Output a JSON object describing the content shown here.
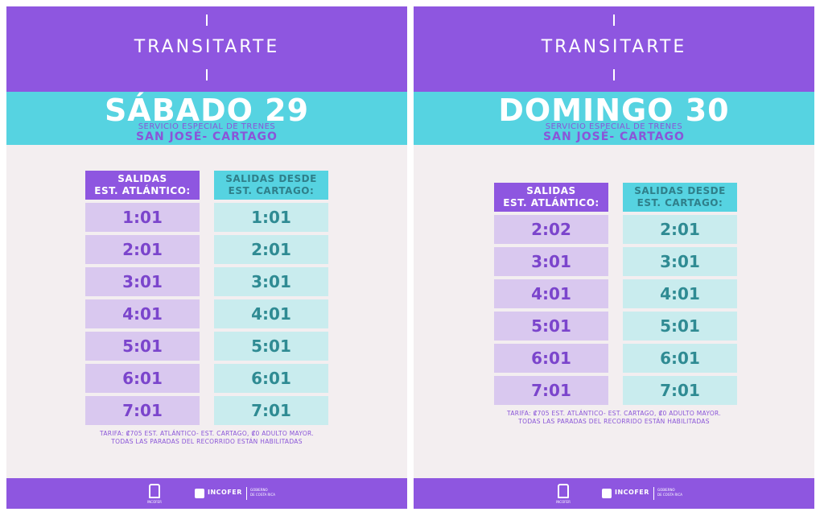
{
  "posters": [
    {
      "brand": "TRANSITARTE",
      "day": "SÁBADO 29",
      "service": "SERVICIO ESPECIAL DE TRENES",
      "route": "SAN JOSÉ- CARTAGO",
      "col1_header": [
        "SALIDAS",
        "EST. ATLÁNTICO:"
      ],
      "col2_header": [
        "SALIDAS DESDE",
        "EST. CARTAGO:"
      ],
      "col1_times": [
        "1:01",
        "2:01",
        "3:01",
        "4:01",
        "5:01",
        "6:01",
        "7:01"
      ],
      "col2_times": [
        "1:01",
        "2:01",
        "3:01",
        "4:01",
        "5:01",
        "6:01",
        "7:01"
      ],
      "note_line1": "TARIFA: ₡705 EST. ATLÁNTICO- EST. CARTAGO, ₡0 ADULTO MAYOR.",
      "note_line2": "TODAS LAS PARADAS DEL RECORRIDO ESTÁN HABILITADAS",
      "footer": {
        "seal_icon": "coat-of-arms-icon",
        "seal_label": "INCOFER",
        "logo_text": "INCOFER",
        "gov_line1": "GOBIERNO",
        "gov_line2": "DE COSTA RICA"
      }
    },
    {
      "brand": "TRANSITARTE",
      "day": "DOMINGO 30",
      "service": "SERVICIO ESPECIAL DE TRENES",
      "route": "SAN JOSÉ- CARTAGO",
      "col1_header": [
        "SALIDAS",
        "EST. ATLÁNTICO:"
      ],
      "col2_header": [
        "SALIDAS DESDE",
        "EST. CARTAGO:"
      ],
      "col1_times": [
        "2:02",
        "3:01",
        "4:01",
        "5:01",
        "6:01",
        "7:01"
      ],
      "col2_times": [
        "2:01",
        "3:01",
        "4:01",
        "5:01",
        "6:01",
        "7:01"
      ],
      "note_line1": "TARIFA: ₡705 EST. ATLÁNTICO- EST. CARTAGO, ₡0 ADULTO MAYOR.",
      "note_line2": "TODAS LAS PARADAS DEL RECORRIDO ESTÁN HABILITADAS",
      "footer": {
        "seal_icon": "coat-of-arms-icon",
        "seal_label": "INCOFER",
        "logo_text": "INCOFER",
        "gov_line1": "GOBIERNO",
        "gov_line2": "DE COSTA RICA"
      }
    }
  ],
  "colors": {
    "purple": "#8e56e0",
    "teal": "#56d3e1",
    "background": "#f3eef0"
  }
}
